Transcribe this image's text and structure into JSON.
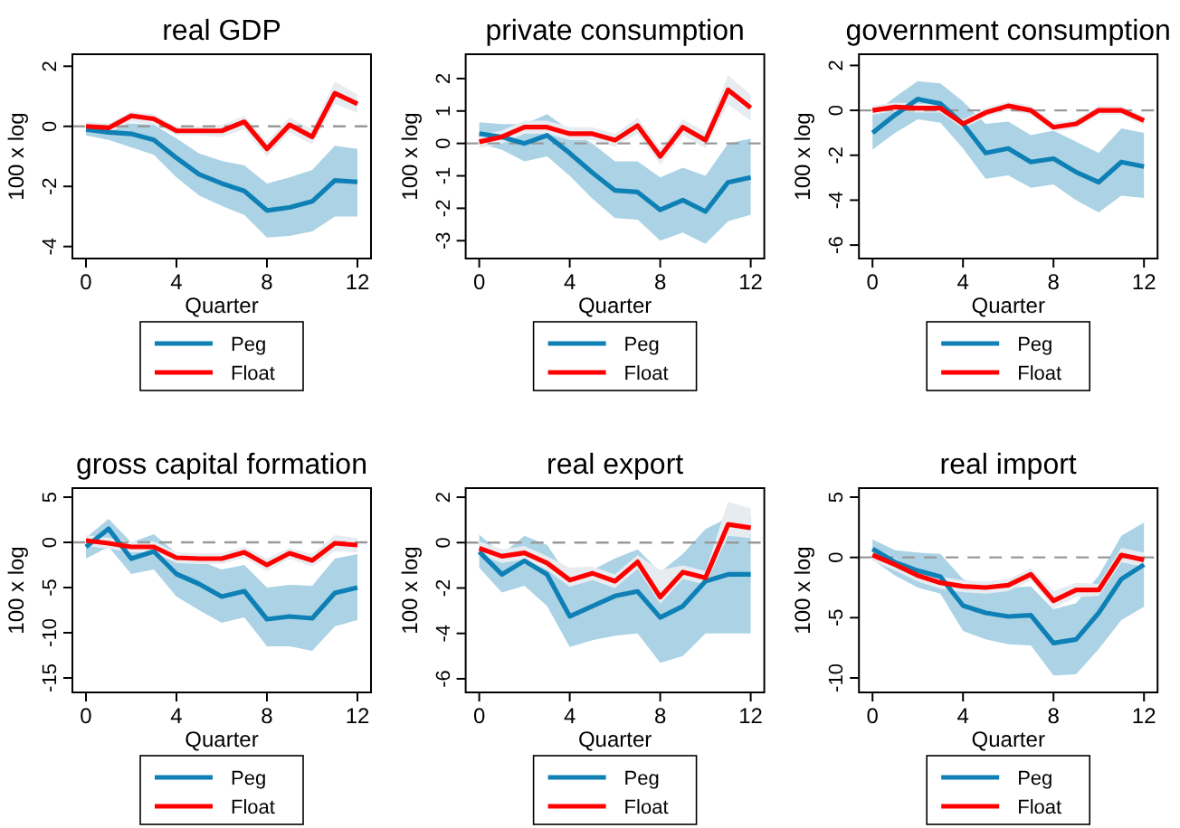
{
  "chart_data": [
    {
      "type": "line",
      "title": "real GDP",
      "xlabel": "Quarter",
      "ylabel": "100 x log",
      "x": [
        0,
        1,
        2,
        3,
        4,
        5,
        6,
        7,
        8,
        9,
        10,
        11,
        12
      ],
      "xlim": [
        -0.6,
        12.6
      ],
      "xticks": [
        0,
        4,
        8,
        12
      ],
      "ylim": [
        -4.4,
        2.4
      ],
      "yticks": [
        -4,
        -2,
        0,
        2
      ],
      "legend": "bottom",
      "ref_lines": [
        {
          "axis": "y",
          "value": 0,
          "color": "#999999",
          "line_style": "dashed"
        }
      ],
      "series": [
        {
          "name": "Peg",
          "color": "#0f80b5",
          "values": [
            -0.1,
            -0.2,
            -0.25,
            -0.45,
            -1.05,
            -1.6,
            -1.9,
            -2.15,
            -2.8,
            -2.7,
            -2.5,
            -1.8,
            -1.85
          ],
          "lower": [
            -0.3,
            -0.45,
            -0.7,
            -0.95,
            -1.7,
            -2.3,
            -2.65,
            -2.95,
            -3.7,
            -3.65,
            -3.5,
            -3.0,
            -3.0
          ],
          "upper": [
            0.05,
            0,
            0.1,
            0.05,
            -0.4,
            -0.9,
            -1.15,
            -1.3,
            -1.9,
            -1.7,
            -1.45,
            -0.65,
            -0.75
          ]
        },
        {
          "name": "Float",
          "color": "#ff0000",
          "values": [
            0,
            -0.05,
            0.35,
            0.25,
            -0.15,
            -0.15,
            -0.15,
            0.15,
            -0.75,
            0.05,
            -0.35,
            1.1,
            0.75
          ],
          "lower": [
            -0.15,
            -0.2,
            0.15,
            0.05,
            -0.3,
            -0.3,
            -0.35,
            -0.1,
            -1.0,
            -0.2,
            -0.6,
            0.75,
            0.45
          ],
          "upper": [
            0.15,
            0.1,
            0.5,
            0.4,
            0,
            0,
            0.05,
            0.35,
            -0.5,
            0.3,
            -0.1,
            1.5,
            1.05
          ]
        }
      ]
    },
    {
      "type": "line",
      "title": "private consumption",
      "xlabel": "Quarter",
      "ylabel": "100 x log",
      "x": [
        0,
        1,
        2,
        3,
        4,
        5,
        6,
        7,
        8,
        9,
        10,
        11,
        12
      ],
      "xlim": [
        -0.6,
        12.6
      ],
      "xticks": [
        0,
        4,
        8,
        12
      ],
      "ylim": [
        -3.55,
        2.75
      ],
      "yticks": [
        -3,
        -2,
        -1,
        0,
        1,
        2
      ],
      "legend": "bottom",
      "ref_lines": [
        {
          "axis": "y",
          "value": 0,
          "color": "#999999",
          "line_style": "dashed"
        }
      ],
      "series": [
        {
          "name": "Peg",
          "color": "#0f80b5",
          "values": [
            0.3,
            0.2,
            0,
            0.25,
            -0.3,
            -0.9,
            -1.45,
            -1.5,
            -2.05,
            -1.75,
            -2.1,
            -1.2,
            -1.05
          ],
          "lower": [
            0,
            -0.2,
            -0.55,
            -0.4,
            -1.0,
            -1.7,
            -2.3,
            -2.35,
            -3.0,
            -2.75,
            -3.1,
            -2.4,
            -2.2
          ],
          "upper": [
            0.65,
            0.6,
            0.6,
            0.9,
            0.4,
            0,
            -0.55,
            -0.55,
            -1.05,
            -0.75,
            -1.0,
            0,
            0.15
          ]
        },
        {
          "name": "Float",
          "color": "#ff0000",
          "values": [
            0.05,
            0.2,
            0.5,
            0.5,
            0.3,
            0.3,
            0.1,
            0.55,
            -0.4,
            0.5,
            0.1,
            1.65,
            1.1
          ],
          "lower": [
            -0.15,
            0,
            0.3,
            0.3,
            0.1,
            0.1,
            -0.1,
            0.3,
            -0.65,
            0.25,
            -0.15,
            1.2,
            0.7
          ],
          "upper": [
            0.25,
            0.4,
            0.7,
            0.7,
            0.5,
            0.5,
            0.3,
            0.8,
            -0.15,
            0.75,
            0.35,
            2.1,
            1.5
          ]
        }
      ]
    },
    {
      "type": "line",
      "title": "government consumption",
      "xlabel": "Quarter",
      "ylabel": "100 x log",
      "x": [
        0,
        1,
        2,
        3,
        4,
        5,
        6,
        7,
        8,
        9,
        10,
        11,
        12
      ],
      "xlim": [
        -0.6,
        12.6
      ],
      "xticks": [
        0,
        4,
        8,
        12
      ],
      "ylim": [
        -6.6,
        2.5
      ],
      "yticks": [
        -6,
        -4,
        -2,
        0,
        2
      ],
      "legend": "bottom",
      "ref_lines": [
        {
          "axis": "y",
          "value": 0,
          "color": "#999999",
          "line_style": "dashed"
        }
      ],
      "series": [
        {
          "name": "Peg",
          "color": "#0f80b5",
          "values": [
            -1.0,
            -0.2,
            0.5,
            0.3,
            -0.6,
            -1.9,
            -1.7,
            -2.3,
            -2.15,
            -2.75,
            -3.2,
            -2.3,
            -2.5
          ],
          "lower": [
            -1.75,
            -1.0,
            -0.4,
            -0.55,
            -1.7,
            -3.05,
            -2.9,
            -3.45,
            -3.3,
            -4.0,
            -4.55,
            -3.8,
            -3.9
          ],
          "upper": [
            -0.2,
            0.6,
            1.3,
            1.2,
            0.4,
            -0.6,
            -0.5,
            -1.1,
            -0.9,
            -1.4,
            -1.9,
            -0.8,
            -1.0
          ]
        },
        {
          "name": "Float",
          "color": "#ff0000",
          "values": [
            0,
            0.15,
            0.1,
            0.1,
            -0.6,
            -0.1,
            0.2,
            0,
            -0.75,
            -0.6,
            0,
            0,
            -0.45
          ],
          "lower": [
            -0.2,
            -0.05,
            -0.1,
            -0.1,
            -0.8,
            -0.3,
            0,
            -0.2,
            -0.95,
            -0.8,
            -0.2,
            -0.2,
            -0.65
          ],
          "upper": [
            0.2,
            0.35,
            0.3,
            0.3,
            -0.4,
            0.1,
            0.4,
            0.2,
            -0.55,
            -0.4,
            0.2,
            0.2,
            -0.25
          ]
        }
      ]
    },
    {
      "type": "line",
      "title": "gross capital formation",
      "xlabel": "Quarter",
      "ylabel": "100 x log",
      "x": [
        0,
        1,
        2,
        3,
        4,
        5,
        6,
        7,
        8,
        9,
        10,
        11,
        12
      ],
      "xlim": [
        -0.6,
        12.6
      ],
      "xticks": [
        0,
        4,
        8,
        12
      ],
      "ylim": [
        -16.6,
        6
      ],
      "yticks": [
        -15,
        -10,
        -5,
        0,
        5
      ],
      "legend": "bottom",
      "ref_lines": [
        {
          "axis": "y",
          "value": 0,
          "color": "#999999",
          "line_style": "dashed"
        }
      ],
      "series": [
        {
          "name": "Peg",
          "color": "#0f80b5",
          "values": [
            -0.5,
            1.5,
            -1.8,
            -1.0,
            -3.5,
            -4.6,
            -6.0,
            -5.4,
            -8.5,
            -8.2,
            -8.4,
            -5.6,
            -5.0
          ],
          "lower": [
            -1.8,
            -0.5,
            -3.5,
            -3.0,
            -6.0,
            -7.5,
            -8.9,
            -8.3,
            -11.5,
            -11.5,
            -12.0,
            -9.3,
            -8.6
          ],
          "upper": [
            0.5,
            2.6,
            0,
            0.9,
            -1.2,
            -2.0,
            -3.0,
            -2.5,
            -5.0,
            -4.7,
            -4.8,
            -1.8,
            -1.3
          ]
        },
        {
          "name": "Float",
          "color": "#ff0000",
          "values": [
            0.2,
            -0.1,
            -0.5,
            -0.5,
            -1.7,
            -1.8,
            -1.8,
            -1.1,
            -2.5,
            -1.2,
            -2.0,
            -0.1,
            -0.3
          ],
          "lower": [
            -0.4,
            -0.7,
            -1.1,
            -1.1,
            -2.3,
            -2.4,
            -2.4,
            -1.7,
            -3.2,
            -1.8,
            -2.7,
            -1.0,
            -1.1
          ],
          "upper": [
            0.8,
            0.5,
            0.1,
            0.1,
            -1.1,
            -1.2,
            -1.2,
            -0.5,
            -1.8,
            -0.6,
            -1.3,
            0.8,
            0.5
          ]
        }
      ]
    },
    {
      "type": "line",
      "title": "real export",
      "xlabel": "Quarter",
      "ylabel": "100 x log",
      "x": [
        0,
        1,
        2,
        3,
        4,
        5,
        6,
        7,
        8,
        9,
        10,
        11,
        12
      ],
      "xlim": [
        -0.6,
        12.6
      ],
      "xticks": [
        0,
        4,
        8,
        12
      ],
      "ylim": [
        -6.6,
        2.4
      ],
      "yticks": [
        -6,
        -4,
        -2,
        0,
        2
      ],
      "legend": "bottom",
      "ref_lines": [
        {
          "axis": "y",
          "value": 0,
          "color": "#999999",
          "line_style": "dashed"
        }
      ],
      "series": [
        {
          "name": "Peg",
          "color": "#0f80b5",
          "values": [
            -0.4,
            -1.4,
            -0.8,
            -1.4,
            -3.25,
            -2.8,
            -2.35,
            -2.15,
            -3.3,
            -2.8,
            -1.7,
            -1.4,
            -1.4
          ],
          "lower": [
            -1.1,
            -2.2,
            -1.9,
            -2.8,
            -4.6,
            -4.3,
            -4.1,
            -4.0,
            -5.3,
            -5.0,
            -4.0,
            -4.0,
            -4.0
          ],
          "upper": [
            0.35,
            -0.5,
            0.3,
            -0.1,
            -1.6,
            -1.2,
            -0.7,
            -0.3,
            -1.3,
            -0.5,
            0.6,
            1.1,
            1.2
          ]
        },
        {
          "name": "Float",
          "color": "#ff0000",
          "values": [
            -0.25,
            -0.6,
            -0.45,
            -0.9,
            -1.65,
            -1.35,
            -1.7,
            -0.85,
            -2.4,
            -1.3,
            -1.55,
            0.8,
            0.65
          ],
          "lower": [
            -0.55,
            -0.9,
            -0.75,
            -1.2,
            -1.95,
            -1.65,
            -2.0,
            -1.15,
            -2.7,
            -1.6,
            -1.85,
            0.3,
            0.2
          ],
          "upper": [
            0.05,
            -0.3,
            -0.15,
            -0.6,
            -1.1,
            -1.05,
            -1.4,
            -0.55,
            -1.2,
            -1.0,
            -1.25,
            1.8,
            1.5
          ]
        }
      ]
    },
    {
      "type": "line",
      "title": "real import",
      "xlabel": "Quarter",
      "ylabel": "100 x log",
      "x": [
        0,
        1,
        2,
        3,
        4,
        5,
        6,
        7,
        8,
        9,
        10,
        11,
        12
      ],
      "xlim": [
        -0.6,
        12.6
      ],
      "xticks": [
        0,
        4,
        8,
        12
      ],
      "ylim": [
        -11.2,
        5.75
      ],
      "yticks": [
        -10,
        -5,
        0,
        5
      ],
      "legend": "bottom",
      "ref_lines": [
        {
          "axis": "y",
          "value": 0,
          "color": "#999999",
          "line_style": "dashed"
        }
      ],
      "series": [
        {
          "name": "Peg",
          "color": "#0f80b5",
          "values": [
            0.7,
            -0.4,
            -1.1,
            -1.6,
            -4.0,
            -4.6,
            -4.9,
            -4.8,
            -7.1,
            -6.8,
            -4.6,
            -1.8,
            -0.6
          ],
          "lower": [
            -0.2,
            -1.5,
            -2.5,
            -3.0,
            -6.1,
            -6.8,
            -7.2,
            -7.3,
            -9.8,
            -9.7,
            -7.6,
            -5.2,
            -4.1
          ],
          "upper": [
            1.5,
            0.6,
            0.4,
            0.3,
            -1.8,
            -2.3,
            -2.5,
            -2.4,
            -4.3,
            -3.8,
            -1.5,
            1.8,
            2.9
          ]
        },
        {
          "name": "Float",
          "color": "#ff0000",
          "values": [
            0.2,
            -0.6,
            -1.5,
            -2.1,
            -2.4,
            -2.5,
            -2.3,
            -1.4,
            -3.6,
            -2.7,
            -2.7,
            0.2,
            -0.2
          ],
          "lower": [
            -0.3,
            -1.1,
            -2.0,
            -2.6,
            -2.9,
            -3.0,
            -2.8,
            -1.9,
            -4.2,
            -3.3,
            -3.2,
            -0.4,
            -0.8
          ],
          "upper": [
            0.7,
            -0.1,
            -1.0,
            -1.6,
            -1.9,
            -2.0,
            -1.8,
            -0.9,
            -2.8,
            -2.1,
            -2.2,
            0.8,
            0.4
          ]
        }
      ]
    }
  ]
}
